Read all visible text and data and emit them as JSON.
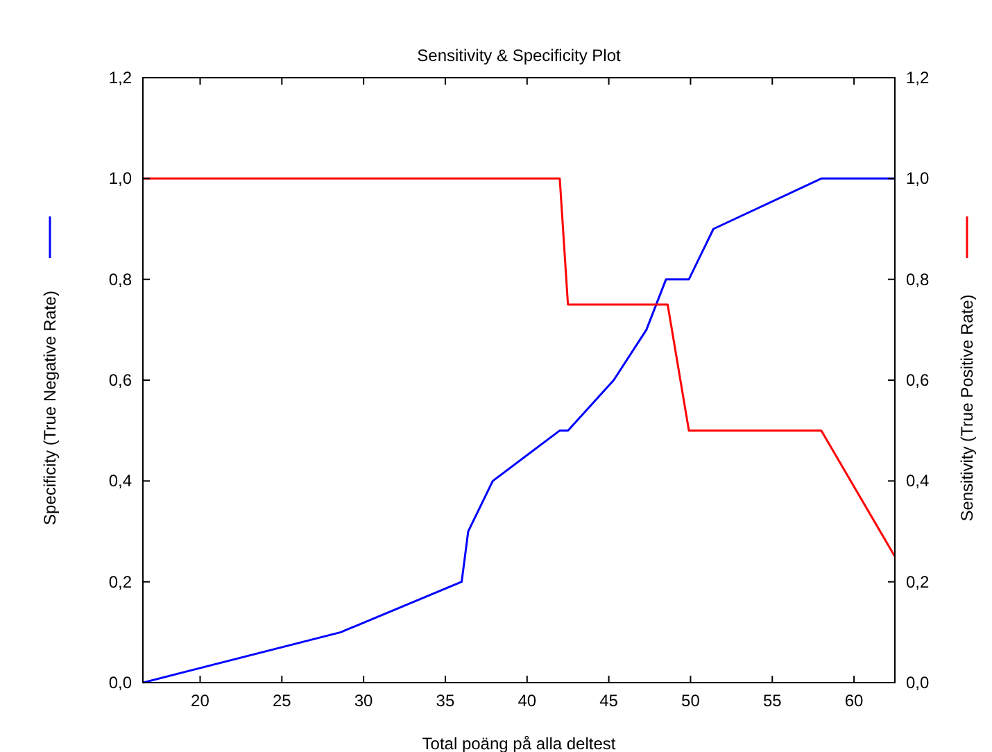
{
  "chart_data": {
    "type": "line",
    "title": "Sensitivity & Specificity Plot",
    "xlabel": "Total poäng på alla deltest",
    "ylabel": "Specificity (True Negative Rate)",
    "y2label": "Sensitivity (True Positive Rate)",
    "xlim": [
      16.5,
      62.5
    ],
    "xticks": [
      20,
      25,
      30,
      35,
      40,
      45,
      50,
      55,
      60
    ],
    "ylim": [
      0,
      1.2
    ],
    "yticks": [
      {
        "value": 0,
        "label": "0,0"
      },
      {
        "value": 0.2,
        "label": "0,2"
      },
      {
        "value": 0.4,
        "label": "0,4"
      },
      {
        "value": 0.6,
        "label": "0,6"
      },
      {
        "value": 0.8,
        "label": "0,8"
      },
      {
        "value": 1,
        "label": "1,0"
      },
      {
        "value": 1.2,
        "label": "1,2"
      }
    ],
    "y2lim": [
      0,
      1.2
    ],
    "y2ticks": [
      {
        "value": 0,
        "label": "0,0"
      },
      {
        "value": 0.2,
        "label": "0,2"
      },
      {
        "value": 0.4,
        "label": "0,4"
      },
      {
        "value": 0.6,
        "label": "0,6"
      },
      {
        "value": 0.8,
        "label": "0,8"
      },
      {
        "value": 1,
        "label": "1,0"
      },
      {
        "value": 1.2,
        "label": "1,2"
      }
    ],
    "grid": false,
    "marker": "none",
    "line_style": "solid",
    "series": [
      {
        "color": "#0000ff",
        "x": [
          16.5,
          28.6,
          36.0,
          36.4,
          37.9,
          42.0,
          42.5,
          45.3,
          47.3,
          48.5,
          49.9,
          51.4,
          58.0,
          62.5
        ],
        "values": [
          0,
          0.1,
          0.2,
          0.3,
          0.4,
          0.5,
          0.5,
          0.6,
          0.7,
          0.8,
          0.8,
          0.9,
          1.0,
          1.0
        ]
      },
      {
        "color": "#ff0000",
        "axis": "y2",
        "x": [
          16.5,
          42.0,
          42.5,
          48.6,
          49.9,
          58.0,
          62.5
        ],
        "values": [
          1,
          1,
          0.75,
          0.75,
          0.5,
          0.5,
          0.25
        ]
      }
    ]
  }
}
